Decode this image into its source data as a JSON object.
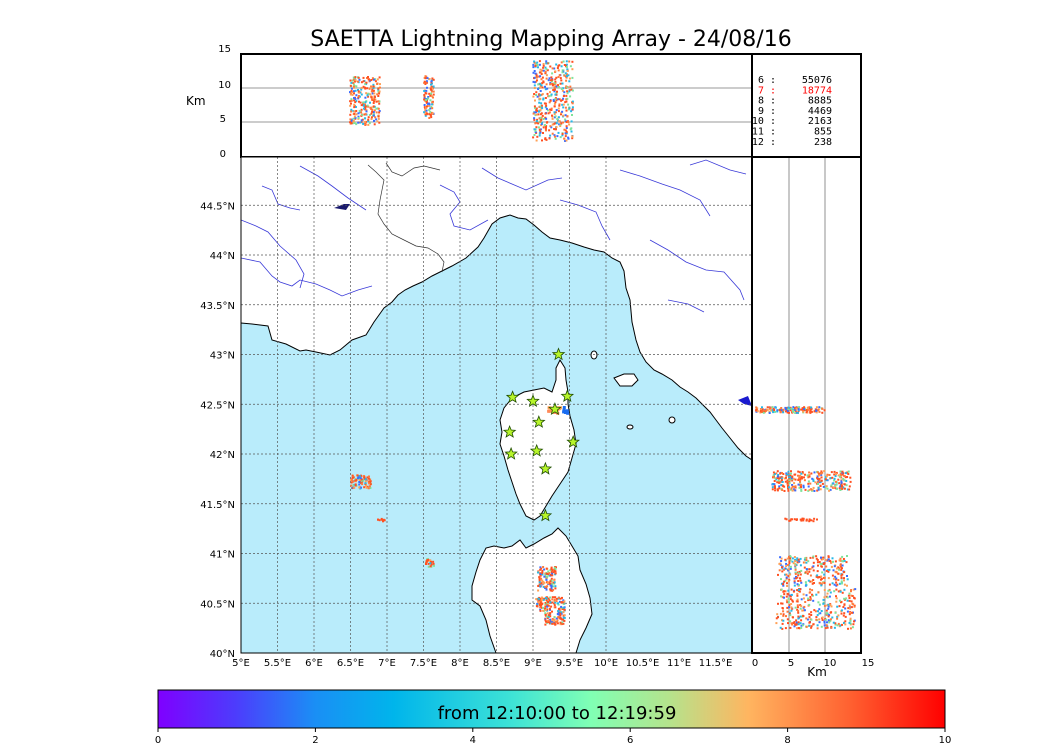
{
  "title": "SAETTA Lightning Mapping Array - 24/08/16",
  "height_axis": {
    "label": "Km",
    "ticks": [
      "15",
      "10",
      "5",
      "0"
    ]
  },
  "side_axis": {
    "label": "Km",
    "ticks": [
      "0",
      "5",
      "10",
      "15"
    ]
  },
  "lat_ticks": [
    "44.5°N",
    "44°N",
    "43.5°N",
    "43°N",
    "42.5°N",
    "42°N",
    "41.5°N",
    "41°N",
    "40.5°N",
    "40°N"
  ],
  "lon_ticks": [
    "5°E",
    "5.5°E",
    "6°E",
    "6.5°E",
    "7°E",
    "7.5°E",
    "8°E",
    "8.5°E",
    "9°E",
    "9.5°E",
    "10°E",
    "10.5°E",
    "11°E",
    "11.5°E"
  ],
  "station_counts": [
    {
      "stations": "6",
      "count": "55076",
      "highlight": false
    },
    {
      "stations": "7",
      "count": "18774",
      "highlight": true
    },
    {
      "stations": "8",
      "count": "8885",
      "highlight": false
    },
    {
      "stations": "9",
      "count": "4469",
      "highlight": false
    },
    {
      "stations": "10",
      "count": "2163",
      "highlight": false
    },
    {
      "stations": "11",
      "count": "855",
      "highlight": false
    },
    {
      "stations": "12",
      "count": "238",
      "highlight": false
    }
  ],
  "colorbar": {
    "label": "from 12:10:00 to 12:19:59",
    "ticks": [
      "0",
      "2",
      "4",
      "6",
      "8",
      "10"
    ]
  },
  "colors": {
    "sea": "#b9ecfb",
    "grid": "#555555",
    "rivers": "#3a3ad8",
    "border": "#333333"
  },
  "stations": [
    {
      "lon": 9.35,
      "lat": 43.0
    },
    {
      "lon": 8.72,
      "lat": 42.57
    },
    {
      "lon": 9.0,
      "lat": 42.53
    },
    {
      "lon": 9.47,
      "lat": 42.58
    },
    {
      "lon": 9.3,
      "lat": 42.45
    },
    {
      "lon": 9.08,
      "lat": 42.32
    },
    {
      "lon": 8.68,
      "lat": 42.22
    },
    {
      "lon": 9.55,
      "lat": 42.12
    },
    {
      "lon": 9.05,
      "lat": 42.03
    },
    {
      "lon": 8.7,
      "lat": 42.0
    },
    {
      "lon": 9.17,
      "lat": 41.85
    },
    {
      "lon": 9.17,
      "lat": 41.38
    }
  ]
}
